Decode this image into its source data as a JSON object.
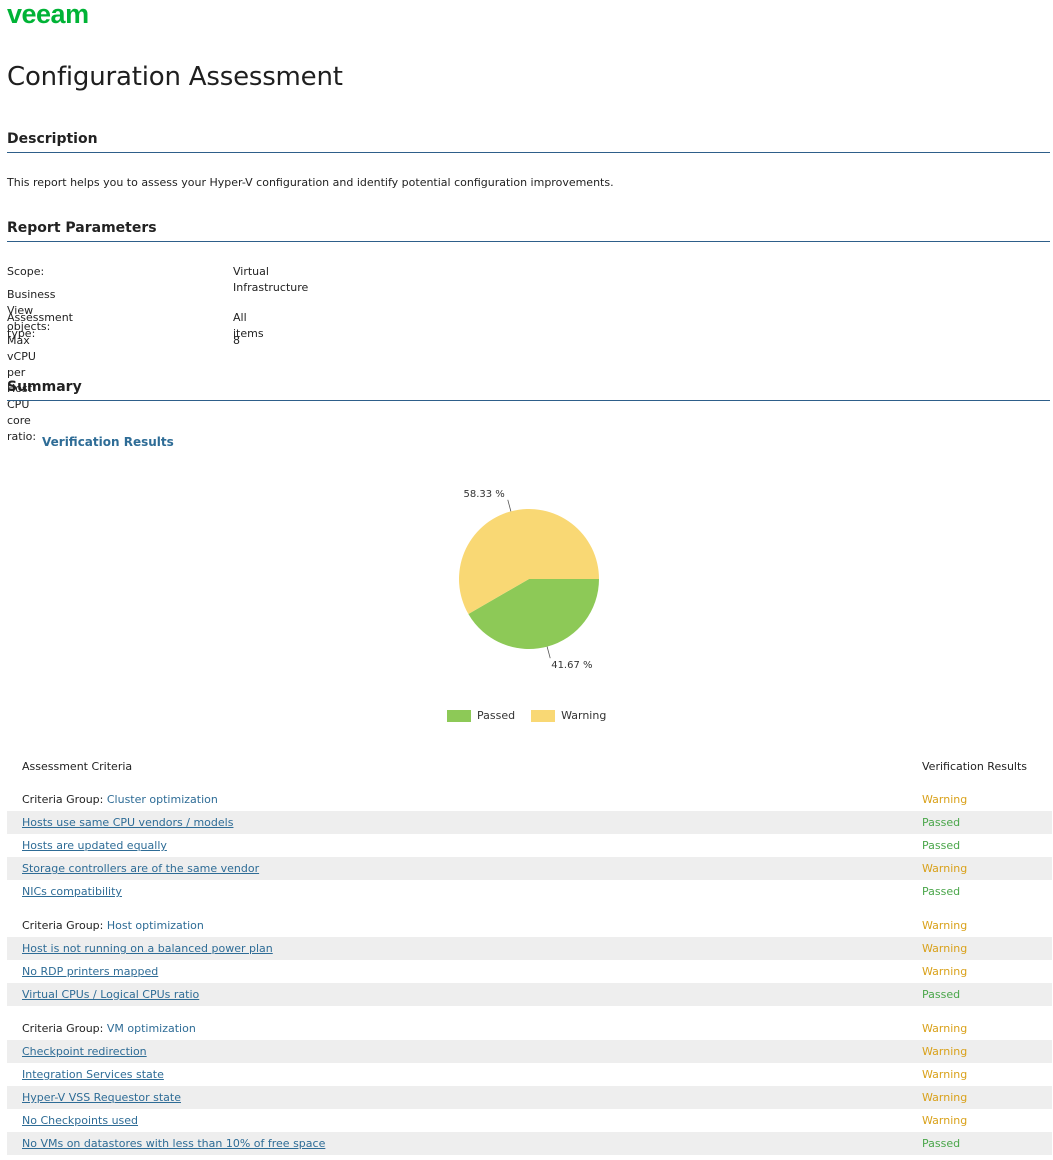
{
  "logo": {
    "text": "veeam",
    "color": "#00b336"
  },
  "title": "Configuration Assessment",
  "description": {
    "header": "Description",
    "text": "This report helps you to assess your Hyper-V configuration and identify potential configuration improvements."
  },
  "parameters": {
    "header": "Report Parameters",
    "rows": [
      {
        "label": "Scope:",
        "value": "Virtual Infrastructure"
      },
      {
        "label": "Business View objects:",
        "value": ""
      },
      {
        "label": "Assessment type:",
        "value": "All items"
      },
      {
        "label": "Max vCPU per Host CPU core ratio:",
        "value": "8"
      }
    ]
  },
  "summary": {
    "header": "Summary",
    "chart_title": "Verification Results"
  },
  "chart_data": {
    "type": "pie",
    "title": "Verification Results",
    "categories": [
      "Passed",
      "Warning"
    ],
    "values": [
      41.67,
      58.33
    ],
    "labels": [
      "41.67 %",
      "58.33 %"
    ],
    "colors": [
      "#8dc957",
      "#f9d874"
    ],
    "legend": "bottom"
  },
  "table": {
    "col_criteria": "Assessment Criteria",
    "col_results": "Verification Results",
    "group_prefix": "Criteria Group: ",
    "groups": [
      {
        "name": "Cluster optimization",
        "result": "Warning",
        "items": [
          {
            "name": "Hosts use same CPU vendors / models",
            "result": "Passed"
          },
          {
            "name": "Hosts are updated equally",
            "result": "Passed"
          },
          {
            "name": "Storage controllers are of the same vendor",
            "result": "Warning"
          },
          {
            "name": "NICs compatibility",
            "result": "Passed"
          }
        ]
      },
      {
        "name": "Host optimization",
        "result": "Warning",
        "items": [
          {
            "name": "Host is not running on a balanced power plan",
            "result": "Warning"
          },
          {
            "name": "No RDP printers mapped",
            "result": "Warning"
          },
          {
            "name": "Virtual CPUs / Logical CPUs ratio",
            "result": "Passed"
          }
        ]
      },
      {
        "name": "VM optimization",
        "result": "Warning",
        "items": [
          {
            "name": "Checkpoint redirection",
            "result": "Warning"
          },
          {
            "name": "Integration Services state",
            "result": "Warning"
          },
          {
            "name": "Hyper-V VSS Requestor state",
            "result": "Warning"
          },
          {
            "name": "No Checkpoints used",
            "result": "Warning"
          },
          {
            "name": "No VMs on datastores with less than 10% of free space",
            "result": "Passed"
          }
        ]
      }
    ]
  }
}
